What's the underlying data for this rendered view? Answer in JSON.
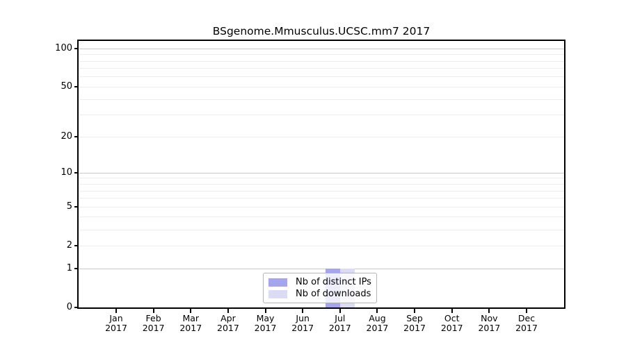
{
  "chart_data": {
    "type": "bar",
    "title": "BSgenome.Mmusculus.UCSC.mm7 2017",
    "categories": [
      "Jan",
      "Feb",
      "Mar",
      "Apr",
      "May",
      "Jun",
      "Jul",
      "Aug",
      "Sep",
      "Oct",
      "Nov",
      "Dec"
    ],
    "year_label": "2017",
    "series": [
      {
        "name": "Nb of distinct IPs",
        "color": "#a5a5ee",
        "values": [
          0,
          0,
          0,
          0,
          0,
          0,
          1,
          0,
          0,
          0,
          0,
          0
        ]
      },
      {
        "name": "Nb of downloads",
        "color": "#dbdbf6",
        "values": [
          0,
          0,
          0,
          0,
          0,
          0,
          1,
          0,
          0,
          0,
          0,
          0
        ]
      }
    ],
    "yscale": "log1p",
    "ylim": [
      0,
      115
    ],
    "yticks": [
      0,
      1,
      2,
      5,
      10,
      20,
      50,
      100
    ],
    "major_gridlines": [
      1,
      10,
      100
    ],
    "minor_gridlines": [
      2,
      3,
      4,
      5,
      6,
      7,
      8,
      9,
      20,
      30,
      40,
      50,
      60,
      70,
      80,
      90
    ],
    "grid": true,
    "legend_position": "bottom-center",
    "colors": {
      "major_grid": "#c9c9c9",
      "minor_grid": "#ededed",
      "axis": "#000000",
      "background": "#ffffff"
    }
  }
}
